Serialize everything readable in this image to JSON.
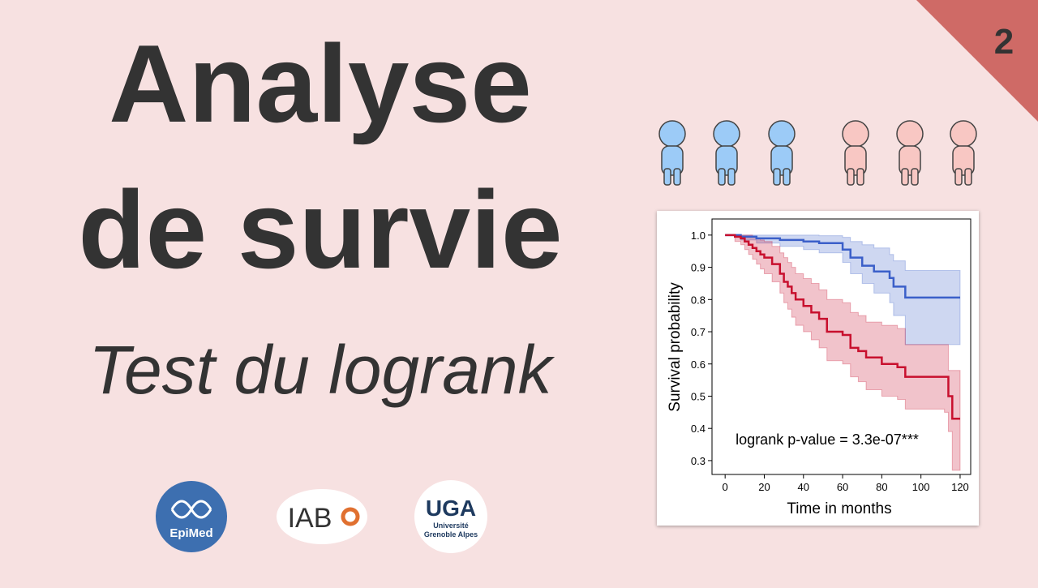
{
  "header": {
    "title_line1": "Analyse",
    "title_line2": "de survie",
    "subtitle": "Test du logrank",
    "episode": "2"
  },
  "logos": [
    {
      "label": "EpiMed"
    },
    {
      "label": "IAB"
    },
    {
      "label": "UGA",
      "sub": [
        "Université",
        "Grenoble Alpes"
      ]
    }
  ],
  "chart_data": {
    "type": "line",
    "step": true,
    "x_label": "Time in months",
    "y_label": "Survival probability",
    "annotation": "logrank p-value = 3.3e-07***",
    "xlim": [
      -6.7,
      125.4
    ],
    "ylim": [
      0.257,
      1.05
    ],
    "xticks": [
      0,
      20,
      40,
      60,
      80,
      100,
      120
    ],
    "yticks": [
      0.3,
      0.4,
      0.5,
      0.6,
      0.7,
      0.8,
      0.9,
      {
        "value": 1,
        "label": "1.0"
      }
    ],
    "series": [
      {
        "color": "#3b5fc9",
        "x": [
          0,
          8,
          16,
          28,
          40,
          48,
          60,
          64,
          70,
          76,
          84,
          86,
          92,
          120
        ],
        "values": [
          1,
          0.995,
          0.99,
          0.985,
          0.98,
          0.975,
          0.955,
          0.93,
          0.905,
          0.887,
          0.867,
          0.84,
          0.806,
          0.806
        ],
        "upper": [
          1,
          1,
          1,
          1,
          1,
          0.998,
          0.993,
          0.98,
          0.97,
          0.96,
          0.94,
          0.92,
          0.89,
          0.89
        ],
        "lower": [
          1,
          0.985,
          0.975,
          0.965,
          0.955,
          0.945,
          0.915,
          0.88,
          0.85,
          0.82,
          0.79,
          0.75,
          0.66,
          0.66
        ]
      },
      {
        "color": "#c8102e",
        "x": [
          0,
          5,
          8,
          10,
          12,
          14,
          16,
          18,
          20,
          24,
          28,
          30,
          32,
          34,
          36,
          40,
          44,
          48,
          52,
          56,
          60,
          64,
          68,
          72,
          80,
          88,
          92,
          112,
          114,
          116,
          120
        ],
        "values": [
          1,
          0.995,
          0.99,
          0.98,
          0.97,
          0.96,
          0.95,
          0.94,
          0.93,
          0.91,
          0.88,
          0.855,
          0.84,
          0.82,
          0.8,
          0.78,
          0.76,
          0.74,
          0.7,
          0.7,
          0.69,
          0.65,
          0.64,
          0.62,
          0.6,
          0.59,
          0.56,
          0.56,
          0.5,
          0.43,
          0.43
        ],
        "upper": [
          1,
          1,
          1,
          1,
          1,
          0.995,
          0.99,
          0.985,
          0.98,
          0.965,
          0.945,
          0.93,
          0.915,
          0.9,
          0.88,
          0.865,
          0.85,
          0.83,
          0.8,
          0.8,
          0.79,
          0.76,
          0.75,
          0.73,
          0.72,
          0.71,
          0.66,
          0.66,
          0.58,
          0.58,
          0.58
        ],
        "lower": [
          1,
          0.98,
          0.97,
          0.955,
          0.94,
          0.925,
          0.91,
          0.895,
          0.88,
          0.855,
          0.82,
          0.79,
          0.77,
          0.745,
          0.72,
          0.7,
          0.675,
          0.65,
          0.61,
          0.61,
          0.6,
          0.56,
          0.545,
          0.52,
          0.5,
          0.49,
          0.46,
          0.45,
          0.39,
          0.27,
          0.27
        ]
      }
    ]
  }
}
